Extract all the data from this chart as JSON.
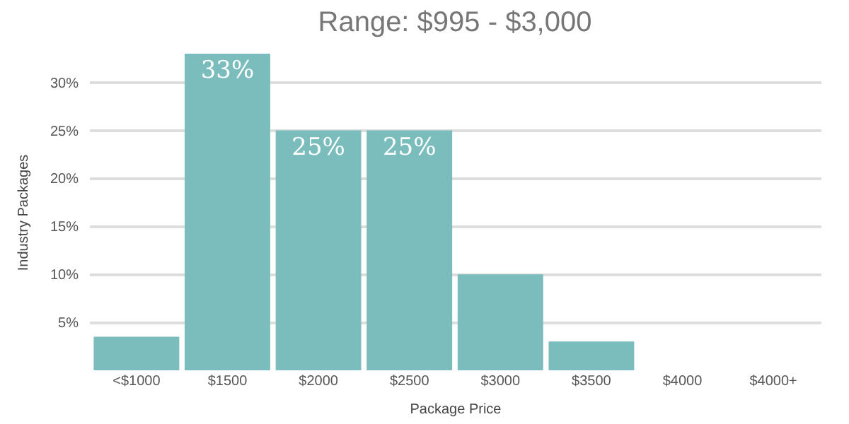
{
  "chart_data": {
    "type": "bar",
    "title": "Range: $995 - $3,000",
    "xlabel": "Package Price",
    "ylabel": "Industry Packages",
    "categories": [
      "<$1000",
      "$1500",
      "$2000",
      "$2500",
      "$3000",
      "$3500",
      "$4000",
      "$4000+"
    ],
    "values": [
      3.5,
      33,
      25,
      25,
      10,
      3,
      0,
      0
    ],
    "value_labels": [
      null,
      "33%",
      "25%",
      "25%",
      null,
      null,
      null,
      null
    ],
    "color": "#7bbcbc",
    "ylim": [
      0,
      33
    ],
    "yticks": [
      {
        "value": 5,
        "label": "5%"
      },
      {
        "value": 10,
        "label": "10%"
      },
      {
        "value": 15,
        "label": "15%"
      },
      {
        "value": 20,
        "label": "20%"
      },
      {
        "value": 25,
        "label": "25%"
      },
      {
        "value": 30,
        "label": "30%"
      }
    ],
    "grid": "y"
  }
}
